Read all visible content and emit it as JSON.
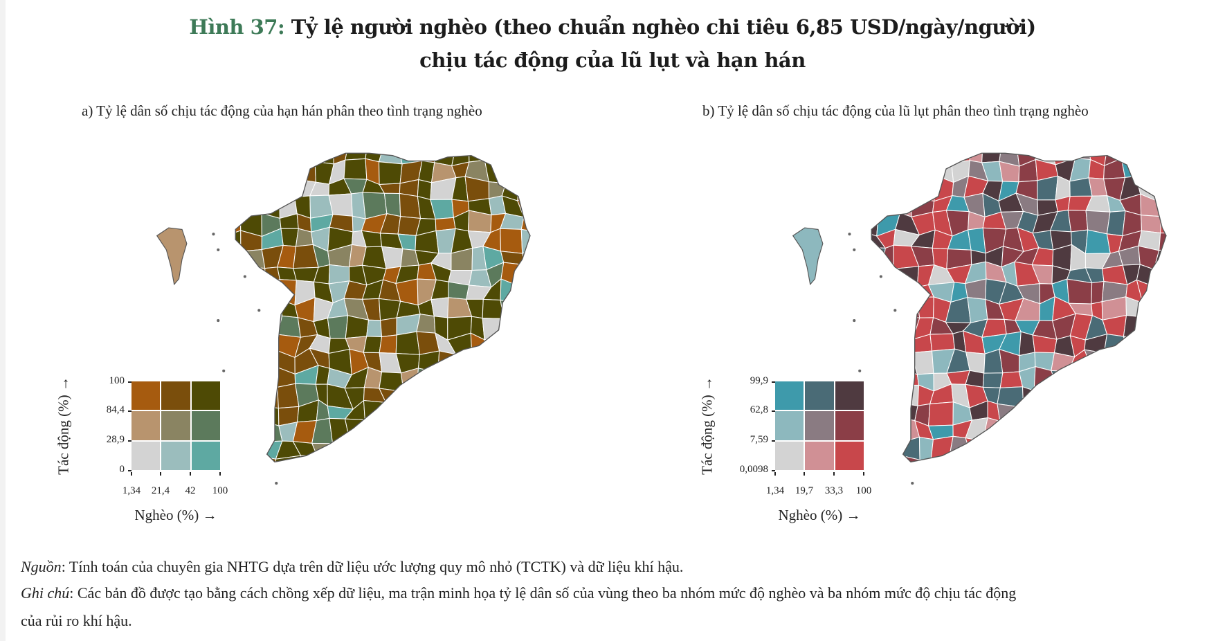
{
  "title": {
    "figure_label": "Hình 37:",
    "line1": "Tỷ lệ người nghèo (theo chuẩn nghèo chi tiêu 6,85 USD/ngày/người)",
    "line2": "chịu tác động của lũ lụt và hạn hán"
  },
  "panels": [
    {
      "subtitle": "a) Tỷ lệ dân số chịu tác động của hạn hán phân theo tình trạng nghèo",
      "legend": {
        "y_label": "Tác động (%) →",
        "x_label": "Nghèo (%) →",
        "y_ticks": [
          "100",
          "84,4",
          "28,9",
          "0"
        ],
        "x_ticks": [
          "1,34",
          "21,4",
          "42",
          "100"
        ],
        "colors": [
          [
            "#A65B0F",
            "#7A4E0C",
            "#4E4A05"
          ],
          [
            "#B8946E",
            "#8A8462",
            "#5C7A5C"
          ],
          [
            "#D3D3D3",
            "#9BBDBD",
            "#5EA9A2"
          ]
        ]
      }
    },
    {
      "subtitle": "b) Tỷ lệ dân số chịu tác động của lũ lụt phân theo tình trạng nghèo",
      "legend": {
        "y_label": "Tác động (%) →",
        "x_label": "Nghèo (%) →",
        "y_ticks": [
          "99,9",
          "62,8",
          "7,59",
          "0,0098"
        ],
        "x_ticks": [
          "1,34",
          "19,7",
          "33,3",
          "100"
        ],
        "colors": [
          [
            "#3E9AAB",
            "#4A6B76",
            "#4F3A40"
          ],
          [
            "#8DB8BE",
            "#8A7B82",
            "#8B3E47"
          ],
          [
            "#D3D3D3",
            "#D09095",
            "#C8474B"
          ]
        ]
      }
    }
  ],
  "footer": {
    "source_label": "Nguồn",
    "source_text": ": Tính toán của chuyên gia NHTG dựa trên dữ liệu ước lượng quy mô nhỏ (TCTK) và dữ liệu khí hậu.",
    "note_label": "Ghi chú",
    "note_text": ": Các bản đồ được tạo bằng cách chồng xếp dữ liệu, ma trận minh họa tỷ lệ dân số của vùng theo ba nhóm mức độ nghèo và ba nhóm mức độ chịu tác động",
    "note_text_2": "của rủi ro khí hậu."
  }
}
